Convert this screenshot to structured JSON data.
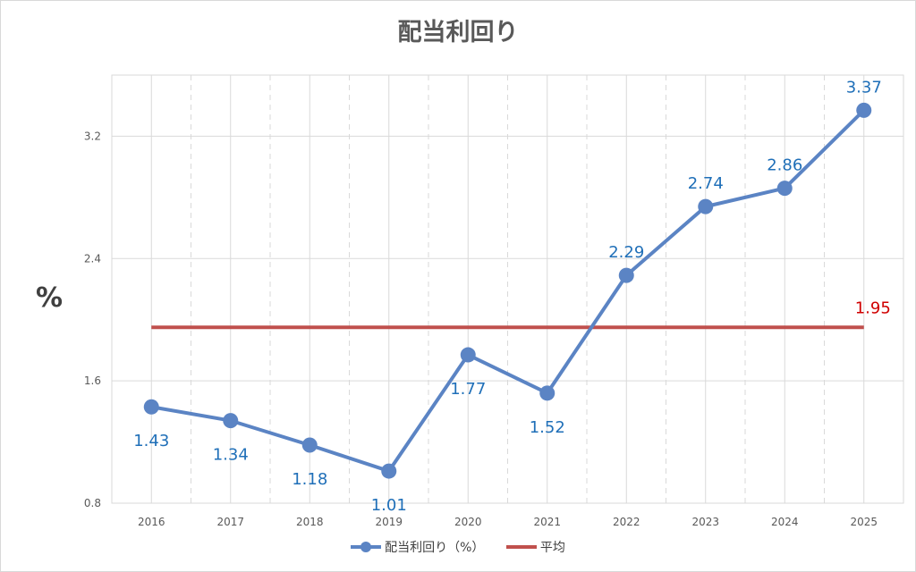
{
  "colors": {
    "dividend_series": "#5b84c4",
    "dividend_label": "#1f6fb8",
    "average_line": "#c0504d",
    "average_label": "#d00000",
    "axis_text": "#595959",
    "grid": "#d9d9d9"
  },
  "chart_data": {
    "type": "line",
    "title": "配当利回り",
    "xlabel": "",
    "ylabel": "%",
    "categories": [
      "2016",
      "2017",
      "2018",
      "2019",
      "2020",
      "2021",
      "2022",
      "2023",
      "2024",
      "2025"
    ],
    "ylim": [
      0.8,
      3.6
    ],
    "yticks": [
      "0.8",
      "1.6",
      "2.4",
      "3.2"
    ],
    "grid": true,
    "legend_position": "bottom",
    "series": [
      {
        "name": "配当利回り（%）",
        "values": [
          1.43,
          1.34,
          1.18,
          1.01,
          1.77,
          1.52,
          2.29,
          2.74,
          2.86,
          3.37
        ],
        "labels": [
          "1.43",
          "1.34",
          "1.18",
          "1.01",
          "1.77",
          "1.52",
          "2.29",
          "2.74",
          "2.86",
          "3.37"
        ]
      },
      {
        "name": "平均",
        "values": [
          1.95,
          1.95,
          1.95,
          1.95,
          1.95,
          1.95,
          1.95,
          1.95,
          1.95,
          1.95
        ],
        "end_label": "1.95"
      }
    ]
  }
}
